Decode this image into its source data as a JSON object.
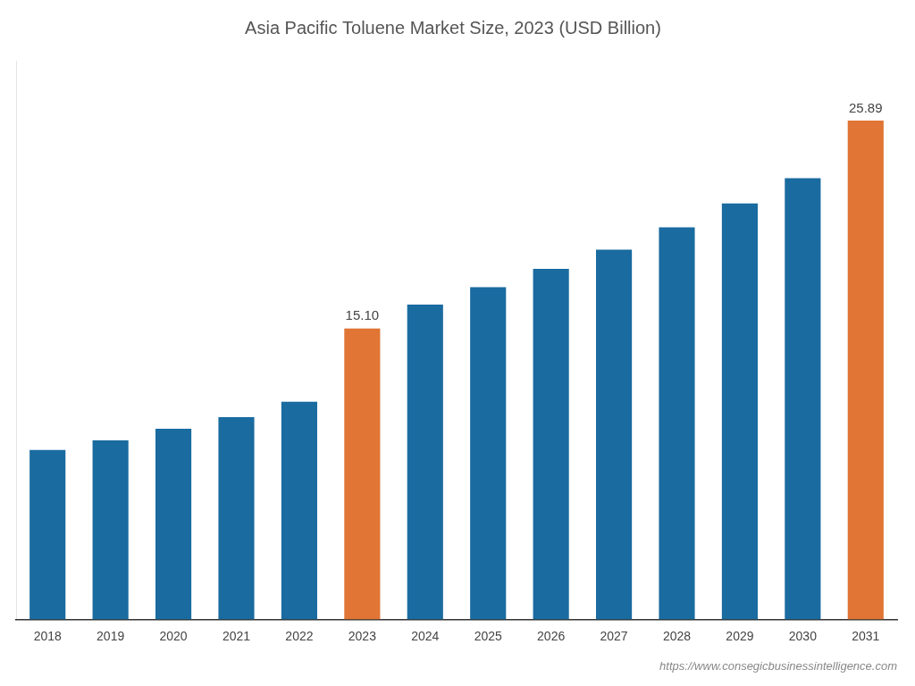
{
  "chart_data": {
    "type": "bar",
    "title": "Asia Pacific Toluene Market Size, 2023 (USD Billion)",
    "categories": [
      "2018",
      "2019",
      "2020",
      "2021",
      "2022",
      "2023",
      "2024",
      "2025",
      "2026",
      "2027",
      "2028",
      "2029",
      "2030",
      "2031"
    ],
    "values": [
      8.8,
      9.3,
      9.9,
      10.5,
      11.3,
      15.1,
      16.35,
      17.25,
      18.2,
      19.2,
      20.35,
      21.6,
      22.9,
      25.89
    ],
    "colors": [
      "#1A6BA0",
      "#1A6BA0",
      "#1A6BA0",
      "#1A6BA0",
      "#1A6BA0",
      "#E07535",
      "#1A6BA0",
      "#1A6BA0",
      "#1A6BA0",
      "#1A6BA0",
      "#1A6BA0",
      "#1A6BA0",
      "#1A6BA0",
      "#E07535"
    ],
    "data_labels": true,
    "value_labels": [
      null,
      null,
      null,
      null,
      null,
      "15.10",
      null,
      null,
      null,
      null,
      null,
      null,
      null,
      "25.89"
    ],
    "ylim": [
      0,
      29
    ],
    "tick_labels": "x",
    "grid": false,
    "annotation": "https://www.consegicbusinessintelligence.com"
  }
}
